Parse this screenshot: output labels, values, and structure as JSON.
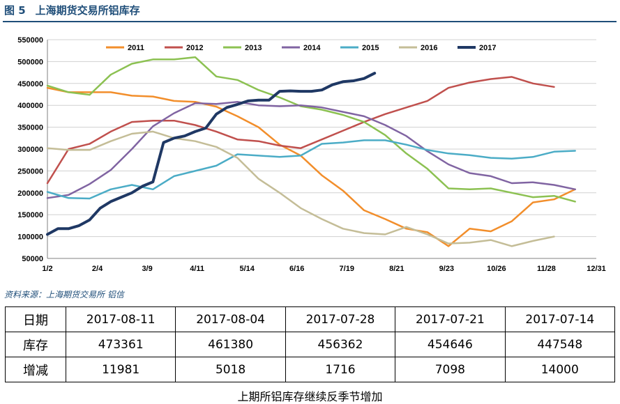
{
  "header": {
    "figure_number": "图 5",
    "title": "上海期货交易所铝库存"
  },
  "source": "资料来源：上海期货交易所    铝信",
  "chart_data": {
    "type": "line",
    "title": "",
    "xlabel": "",
    "ylabel": "",
    "ylim": [
      50000,
      550000
    ],
    "yticks": [
      "50000",
      "100000",
      "150000",
      "200000",
      "250000",
      "300000",
      "350000",
      "400000",
      "450000",
      "500000",
      "550000"
    ],
    "xticks": [
      "1/2",
      "2/4",
      "3/9",
      "4/11",
      "5/14",
      "6/16",
      "7/19",
      "8/21",
      "9/23",
      "10/26",
      "11/28",
      "12/31"
    ],
    "grid": "horizontal",
    "legend": "top",
    "series": [
      {
        "name": "2011",
        "color": "#f28e2b",
        "width": 2.5,
        "x": [
          1,
          3,
          5,
          7,
          9,
          11,
          13,
          15,
          17,
          19,
          21,
          23,
          25,
          27,
          29,
          31,
          33,
          35,
          37,
          39,
          41,
          43,
          45,
          47,
          49,
          51
        ],
        "values": [
          440000,
          430000,
          430000,
          430000,
          422000,
          420000,
          410000,
          408000,
          397000,
          375000,
          350000,
          310000,
          285000,
          240000,
          205000,
          160000,
          140000,
          118000,
          110000,
          78000,
          118000,
          112000,
          135000,
          178000,
          185000,
          208000
        ]
      },
      {
        "name": "2012",
        "color": "#c0504d",
        "width": 2.5,
        "x": [
          1,
          3,
          5,
          7,
          9,
          11,
          13,
          15,
          17,
          19,
          21,
          23,
          25,
          27,
          29,
          31,
          33,
          35,
          37,
          39,
          41,
          43,
          45,
          47,
          49
        ],
        "values": [
          222000,
          300000,
          312000,
          340000,
          362000,
          365000,
          365000,
          355000,
          340000,
          322000,
          318000,
          308000,
          302000,
          322000,
          342000,
          362000,
          380000,
          395000,
          410000,
          440000,
          452000,
          460000,
          465000,
          450000,
          442000
        ]
      },
      {
        "name": "2013",
        "color": "#8cc152",
        "width": 2.5,
        "x": [
          1,
          3,
          5,
          7,
          9,
          11,
          13,
          15,
          17,
          19,
          21,
          23,
          25,
          27,
          29,
          31,
          33,
          35,
          37,
          39,
          41,
          43,
          45,
          47,
          49,
          51
        ],
        "values": [
          445000,
          430000,
          424000,
          470000,
          495000,
          505000,
          505000,
          510000,
          466000,
          458000,
          435000,
          418000,
          398000,
          390000,
          378000,
          362000,
          332000,
          290000,
          255000,
          210000,
          208000,
          210000,
          200000,
          190000,
          193000,
          180000
        ]
      },
      {
        "name": "2014",
        "color": "#8064a2",
        "width": 2.5,
        "x": [
          1,
          3,
          5,
          7,
          9,
          11,
          13,
          15,
          17,
          19,
          21,
          23,
          25,
          27,
          29,
          31,
          33,
          35,
          37,
          39,
          41,
          43,
          45,
          47,
          49,
          51
        ],
        "values": [
          188000,
          195000,
          220000,
          252000,
          300000,
          352000,
          382000,
          405000,
          403000,
          408000,
          400000,
          398000,
          400000,
          395000,
          385000,
          375000,
          355000,
          330000,
          295000,
          265000,
          245000,
          238000,
          222000,
          224000,
          218000,
          208000
        ]
      },
      {
        "name": "2015",
        "color": "#4bacc6",
        "width": 2.5,
        "x": [
          1,
          3,
          5,
          7,
          9,
          11,
          13,
          15,
          17,
          19,
          21,
          23,
          25,
          27,
          29,
          31,
          33,
          35,
          37,
          39,
          41,
          43,
          45,
          47,
          49,
          51
        ],
        "values": [
          202000,
          188000,
          187000,
          208000,
          218000,
          208000,
          238000,
          250000,
          262000,
          288000,
          285000,
          282000,
          285000,
          312000,
          315000,
          320000,
          320000,
          310000,
          298000,
          290000,
          286000,
          280000,
          278000,
          282000,
          294000,
          296000
        ]
      },
      {
        "name": "2016",
        "color": "#c4bd97",
        "width": 2.5,
        "x": [
          1,
          3,
          5,
          7,
          9,
          11,
          13,
          15,
          17,
          19,
          21,
          23,
          25,
          27,
          29,
          31,
          33,
          35,
          37,
          39,
          41,
          43,
          45,
          47,
          49
        ],
        "values": [
          302000,
          298000,
          298000,
          318000,
          335000,
          340000,
          325000,
          318000,
          305000,
          280000,
          232000,
          200000,
          165000,
          140000,
          118000,
          108000,
          105000,
          122000,
          105000,
          84000,
          86000,
          92000,
          78000,
          90000,
          100000
        ]
      },
      {
        "name": "2017",
        "color": "#1f3864",
        "width": 4,
        "x": [
          1,
          2,
          3,
          4,
          5,
          6,
          7,
          8,
          9,
          10,
          11,
          12,
          13,
          14,
          15,
          16,
          17,
          18,
          19,
          20,
          21,
          22,
          23,
          24,
          25,
          26,
          27,
          28,
          29,
          30,
          31,
          32
        ],
        "values": [
          105000,
          118000,
          118000,
          125000,
          138000,
          165000,
          180000,
          190000,
          200000,
          215000,
          225000,
          315000,
          325000,
          330000,
          340000,
          348000,
          380000,
          395000,
          402000,
          410000,
          412000,
          412000,
          432000,
          433000,
          432000,
          432000,
          435000,
          447000,
          454000,
          456000,
          461380,
          473361
        ]
      }
    ]
  },
  "table": {
    "rows": [
      {
        "header": "日期",
        "cells": [
          "2017-08-11",
          "2017-08-04",
          "2017-07-28",
          "2017-07-21",
          "2017-07-14"
        ]
      },
      {
        "header": "库存",
        "cells": [
          "473361",
          "461380",
          "456362",
          "454646",
          "447548"
        ]
      },
      {
        "header": "增减",
        "cells": [
          "11981",
          "5018",
          "1716",
          "7098",
          "14000"
        ]
      }
    ]
  },
  "caption": "上期所铝库存继续反季节增加"
}
